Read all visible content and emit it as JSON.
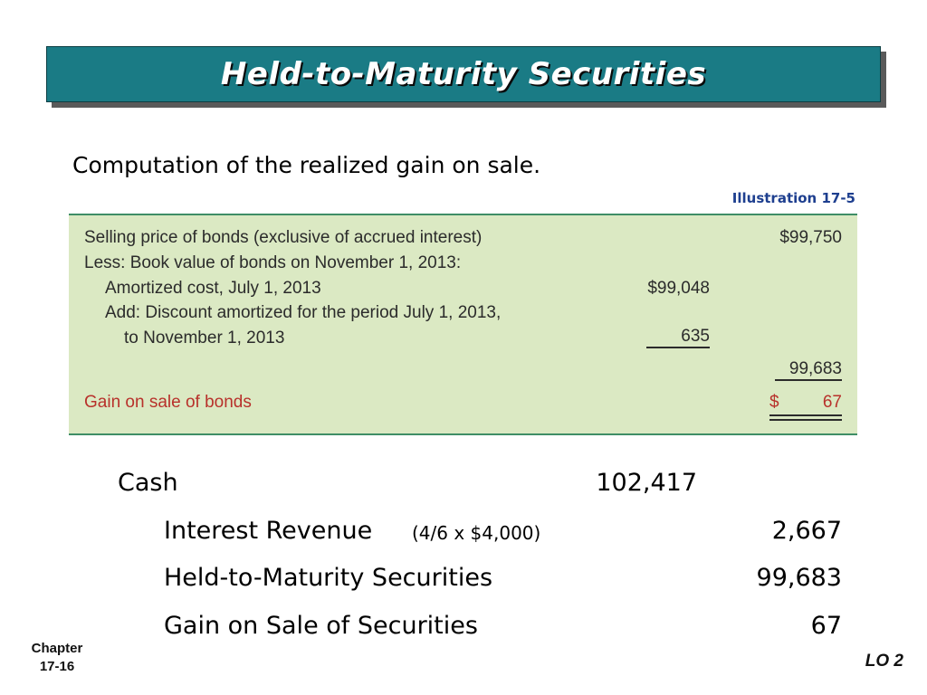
{
  "title": "Held-to-Maturity Securities",
  "intro": "Computation of the realized gain on sale.",
  "illustration_label": "Illustration 17-5",
  "computation": {
    "selling_price_label": "Selling price of bonds (exclusive of accrued interest)",
    "selling_price_value": "$99,750",
    "less_book_value_label": "Less: Book value of bonds on November 1, 2013:",
    "amortized_cost_label": "Amortized cost, July 1, 2013",
    "amortized_cost_value": "$99,048",
    "add_discount_label_line1": "Add: Discount amortized for the period July 1, 2013,",
    "add_discount_label_line2": "to November 1, 2013",
    "add_discount_value": "635",
    "book_value_total": "99,683",
    "gain_label": "Gain on sale of bonds",
    "gain_currency": "$",
    "gain_value": "67"
  },
  "journal": {
    "cash_label": "Cash",
    "cash_debit": "102,417",
    "interest_label": "Interest Revenue",
    "interest_note": "(4/6 x $4,000)",
    "interest_credit": "2,667",
    "htm_label": "Held-to-Maturity Securities",
    "htm_credit": "99,683",
    "gain_label": "Gain on Sale of Securities",
    "gain_credit": "67"
  },
  "footer": {
    "chapter_label": "Chapter",
    "chapter_page": "17-16",
    "lo": "LO 2"
  },
  "colors": {
    "title_bar": "#1a7b85",
    "box_background": "#dbe9c3",
    "gain_text": "#b8312b",
    "illustration_text": "#1e3f8f"
  }
}
